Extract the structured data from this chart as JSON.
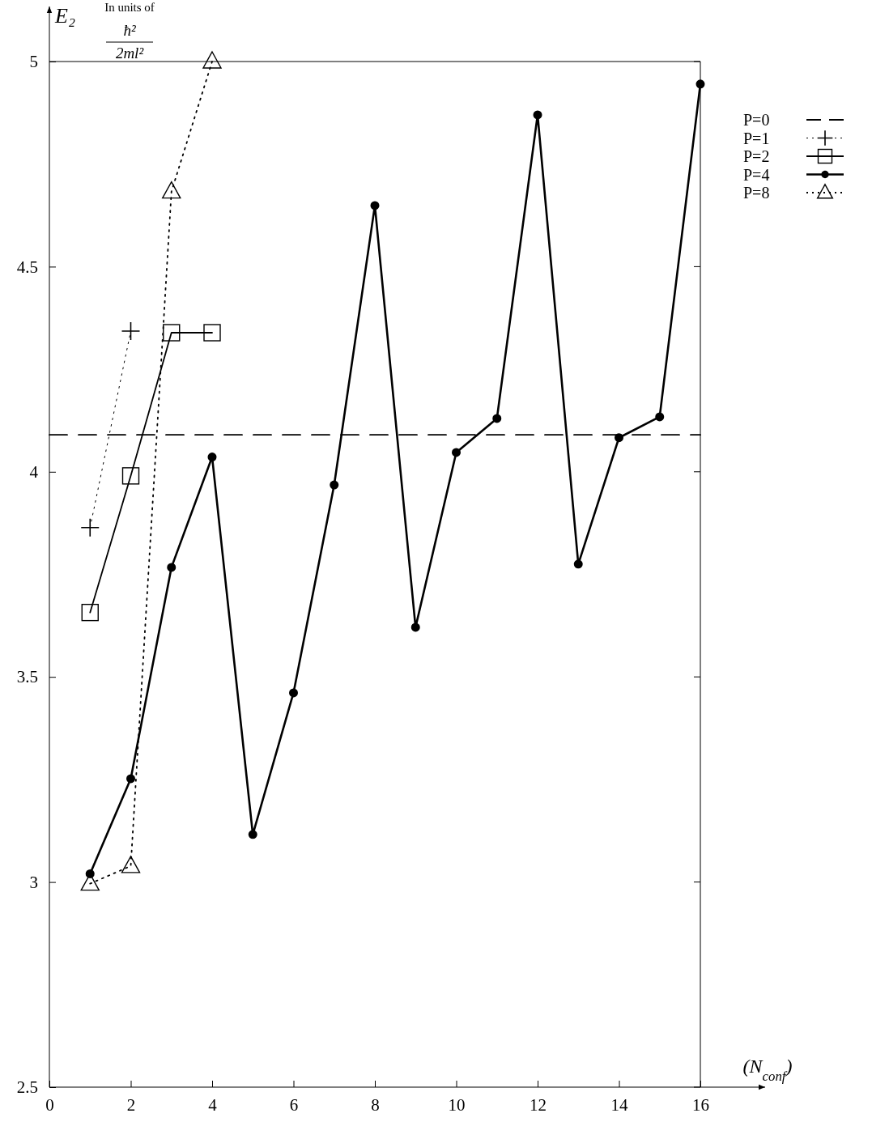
{
  "chart_data": {
    "type": "line",
    "xlabel": "(N$_{conf}$)",
    "ylabel": "E₂",
    "annotations": [
      "In units of",
      "ħ²",
      "2ml²"
    ],
    "xlim": [
      0,
      16
    ],
    "xticks": [
      0,
      2,
      4,
      6,
      8,
      10,
      12,
      14,
      16
    ],
    "ylim": [
      2.5,
      5
    ],
    "yticks": [
      2.5,
      3,
      3.5,
      4,
      4.5,
      5
    ],
    "grid": false,
    "legend": "top right",
    "series": [
      {
        "name": "P=0",
        "color": "#000000",
        "x": [
          0,
          16
        ],
        "values": [
          4.09,
          4.09
        ],
        "marker": "none",
        "line_style": "dashed"
      },
      {
        "name": "P=1",
        "color": "#000000",
        "x": [
          1,
          2
        ],
        "values": [
          3.864,
          4.343
        ],
        "marker": "cross",
        "line_style": "dotted"
      },
      {
        "name": "P=2",
        "color": "#000000",
        "x": [
          1,
          2,
          3,
          4
        ],
        "values": [
          3.657,
          3.99,
          4.339,
          4.339
        ],
        "marker": "square",
        "line_style": "solid"
      },
      {
        "name": "P=4",
        "color": "#000000",
        "x": [
          1,
          2,
          3,
          4,
          5,
          6,
          7,
          8,
          9,
          10,
          11,
          12,
          13,
          14,
          15,
          16
        ],
        "values": [
          3.02,
          3.252,
          3.767,
          4.036,
          3.116,
          3.461,
          3.968,
          4.649,
          3.621,
          4.047,
          4.13,
          4.87,
          3.775,
          4.083,
          4.134,
          4.945
        ],
        "marker": "circle",
        "line_style": "solid"
      },
      {
        "name": "P=8",
        "color": "#000000",
        "x": [
          1,
          2,
          3,
          4
        ],
        "values": [
          2.996,
          3.039,
          4.683,
          5.0
        ],
        "marker": "triangle",
        "line_style": "dotted"
      }
    ]
  }
}
